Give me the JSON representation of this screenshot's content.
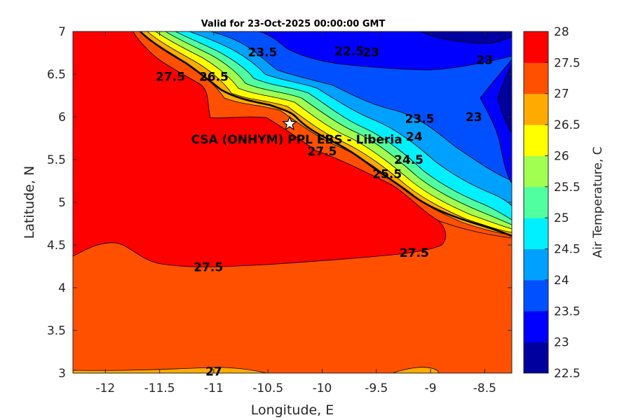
{
  "title": "Valid for 23-Oct-2025 00:00:00 GMT",
  "map": {
    "xlabel": "Longitude, E",
    "ylabel": "Latitude, N",
    "xlim": [
      -12.3,
      -8.25
    ],
    "ylim": [
      3,
      7
    ],
    "xticks": [
      -12,
      -11.5,
      -11,
      -10.5,
      -10,
      -9.5,
      -9,
      -8.5
    ],
    "yticks": [
      3,
      3.5,
      4,
      4.5,
      5,
      5.5,
      6,
      6.5,
      7
    ],
    "site": {
      "label": "CSA (ONHYM) PPL EBS  - Liberia",
      "lon": -10.3,
      "lat": 5.92,
      "marker": "star-icon"
    },
    "contour_labels": [
      {
        "text": "23.5",
        "lon": -10.55,
        "lat": 6.76
      },
      {
        "text": "23",
        "lon": -9.55,
        "lat": 6.76
      },
      {
        "text": "22.5",
        "lon": -9.75,
        "lat": 6.77
      },
      {
        "text": "23",
        "lon": -8.5,
        "lat": 6.67
      },
      {
        "text": "23",
        "lon": -8.6,
        "lat": 6.0
      },
      {
        "text": "23.5",
        "lon": -9.1,
        "lat": 5.98
      },
      {
        "text": "24",
        "lon": -9.15,
        "lat": 5.77
      },
      {
        "text": "24.5",
        "lon": -9.2,
        "lat": 5.5
      },
      {
        "text": "25.5",
        "lon": -9.4,
        "lat": 5.33
      },
      {
        "text": "27.5",
        "lon": -10.0,
        "lat": 5.6
      },
      {
        "text": "27.5",
        "lon": -11.4,
        "lat": 6.47
      },
      {
        "text": "26.5",
        "lon": -11.0,
        "lat": 6.47
      },
      {
        "text": "27.5",
        "lon": -11.05,
        "lat": 4.24
      },
      {
        "text": "27.5",
        "lon": -9.15,
        "lat": 4.41
      },
      {
        "text": "27",
        "lon": -11.0,
        "lat": 3.02
      }
    ]
  },
  "colorbar": {
    "label": "Air Temperature, C",
    "levels": [
      22.5,
      23,
      23.5,
      24,
      24.5,
      25,
      25.5,
      26,
      26.5,
      27,
      27.5,
      28
    ],
    "colors": [
      "#00009f",
      "#0000ff",
      "#0050ff",
      "#00a0ff",
      "#00f0ff",
      "#50ffa0",
      "#a0ff50",
      "#ffff00",
      "#ffaa00",
      "#ff5000",
      "#ff0000",
      "#aa0000"
    ]
  }
}
